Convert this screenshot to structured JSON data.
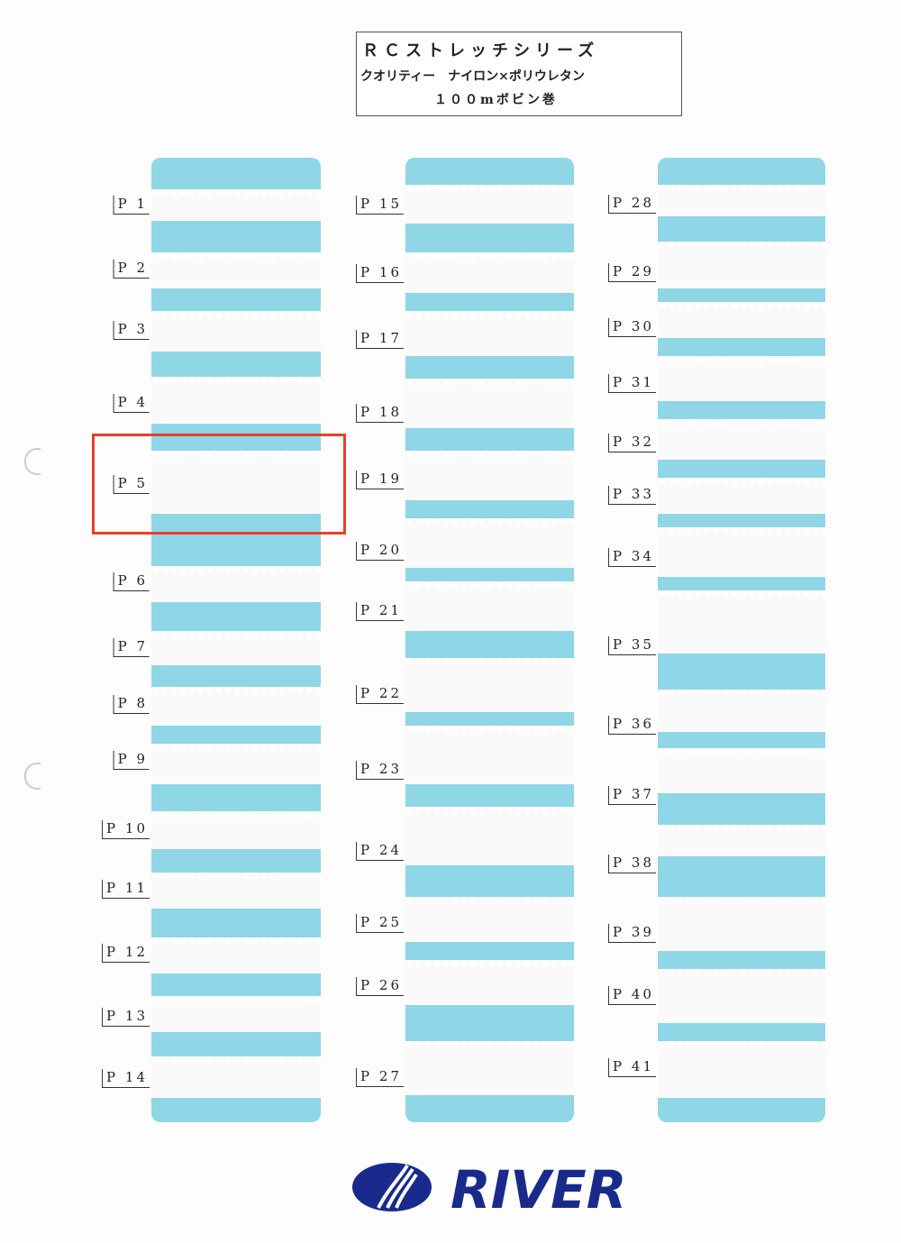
{
  "header": {
    "lines": [
      "ＲＣストレッチシリーズ",
      "クオリティー　ナイロン×ポリウレタン",
      "１００mボビン巻"
    ]
  },
  "columns": [
    {
      "labels": [
        "P 1",
        "P 2",
        "P 3",
        "P 4",
        "P 5",
        "P 6",
        "P 7",
        "P 8",
        "P 9",
        "P 10",
        "P 11",
        "P 12",
        "P 13",
        "P 14"
      ]
    },
    {
      "labels": [
        "P 15",
        "P 16",
        "P 17",
        "P 18",
        "P 19",
        "P 20",
        "P 21",
        "P 22",
        "P 23",
        "P 24",
        "P 25",
        "P 26",
        "P 27"
      ]
    },
    {
      "labels": [
        "P 28",
        "P 29",
        "P 30",
        "P 31",
        "P 32",
        "P 33",
        "P 34",
        "P 35",
        "P 36",
        "P 37",
        "P 38",
        "P 39",
        "P 40",
        "P 41"
      ]
    }
  ],
  "logo": {
    "text": "RIVER"
  }
}
